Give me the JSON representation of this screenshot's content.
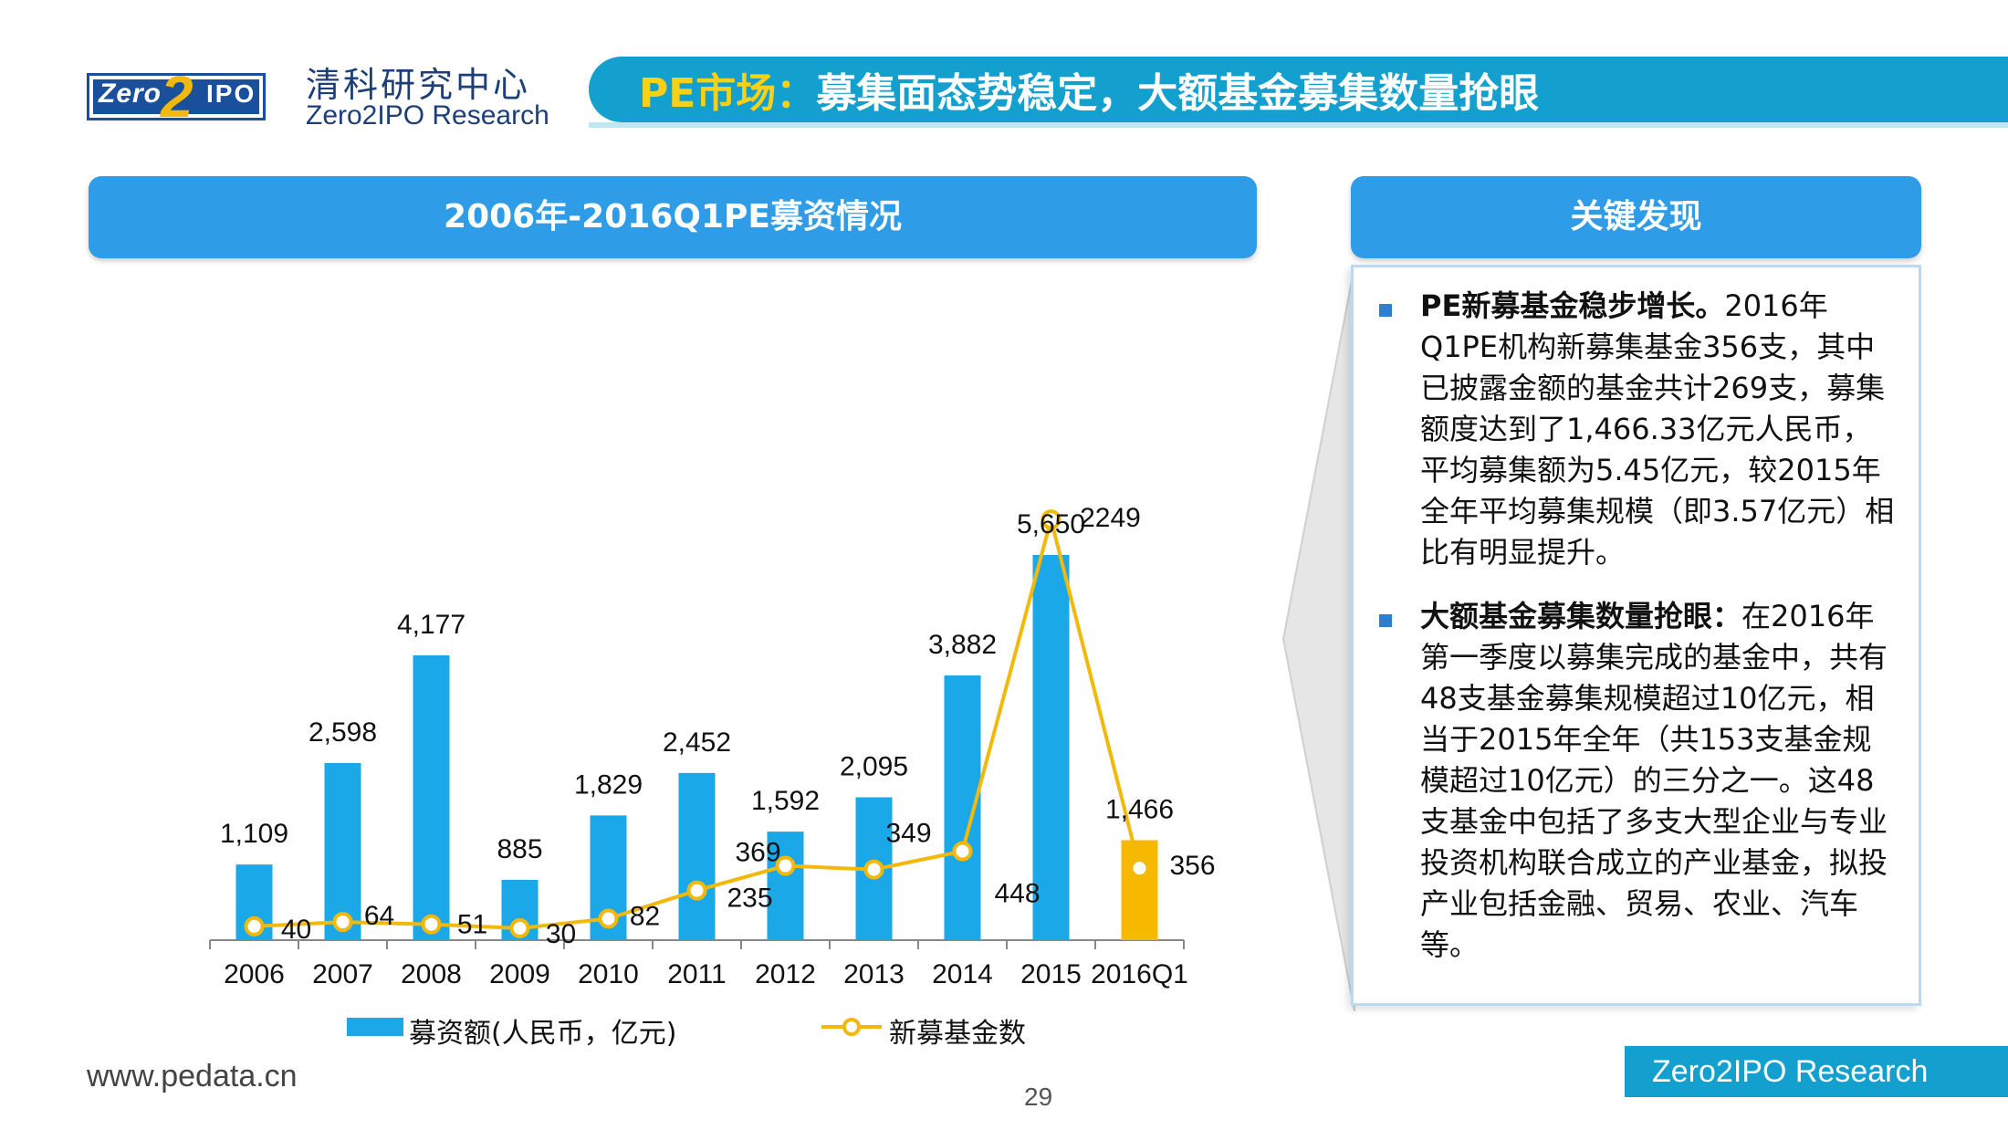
{
  "brand": {
    "logo_zero": "Zero",
    "logo_two": "2",
    "logo_ipo": "IPO",
    "name_cn": "清科研究中心",
    "name_en": "Zero2IPO Research"
  },
  "title": {
    "highlight": "PE市场：",
    "rest": "募集面态势稳定，大额基金募集数量抢眼"
  },
  "chart_header": "2006年-2016Q1PE募资情况",
  "chart_data": {
    "type": "bar",
    "title": "2006年-2016Q1PE募资情况",
    "categories": [
      "2006",
      "2007",
      "2008",
      "2009",
      "2010",
      "2011",
      "2012",
      "2013",
      "2014",
      "2015",
      "2016Q1"
    ],
    "series": [
      {
        "name": "募资额(人民币，亿元)",
        "type": "bar",
        "values": [
          1109,
          2598,
          4177,
          885,
          1829,
          2452,
          1592,
          2095,
          3882,
          5650,
          1466
        ],
        "labels": [
          "1,109",
          "2,598",
          "4,177",
          "885",
          "1,829",
          "2,452",
          "1,592",
          "2,095",
          "3,882",
          "5,650",
          "1,466"
        ]
      },
      {
        "name": "新募基金数",
        "type": "line",
        "values": [
          40,
          64,
          51,
          30,
          82,
          235,
          369,
          349,
          448,
          2249,
          356
        ],
        "labels": [
          "40",
          "64",
          "51",
          "30",
          "82",
          "235",
          "369",
          "349",
          "448",
          "2249",
          "356"
        ]
      }
    ],
    "colors": {
      "bar": "#1aa8e8",
      "bar_highlight": "#f7b800",
      "line": "#f3b80c"
    },
    "ylim": [
      0,
      6000
    ],
    "legend": "bottom",
    "grid": false
  },
  "legend": {
    "bar_label": "募资额(人民币，亿元)",
    "line_label": "新募基金数"
  },
  "findings": {
    "header": "关键发现",
    "items": [
      {
        "bold": "PE新募基金稳步增长。",
        "text": "2016年Q1PE机构新募集基金356支，其中已披露金额的基金共计269支，募集额度达到了1,466.33亿元人民币，平均募集额为5.45亿元，较2015年全年平均募集规模（即3.57亿元）相比有明显提升。"
      },
      {
        "bold": "大额基金募集数量抢眼：",
        "text": "在2016年第一季度以募集完成的基金中，共有48支基金募集规模超过10亿元，相当于2015年全年（共153支基金规模超过10亿元）的三分之一。这48支基金中包括了多支大型企业与专业投资机构联合成立的产业基金，拟投产业包括金融、贸易、农业、汽车等。"
      }
    ]
  },
  "footer": {
    "url": "www.pedata.cn",
    "page": "29",
    "brand": "Zero2IPO Research"
  }
}
